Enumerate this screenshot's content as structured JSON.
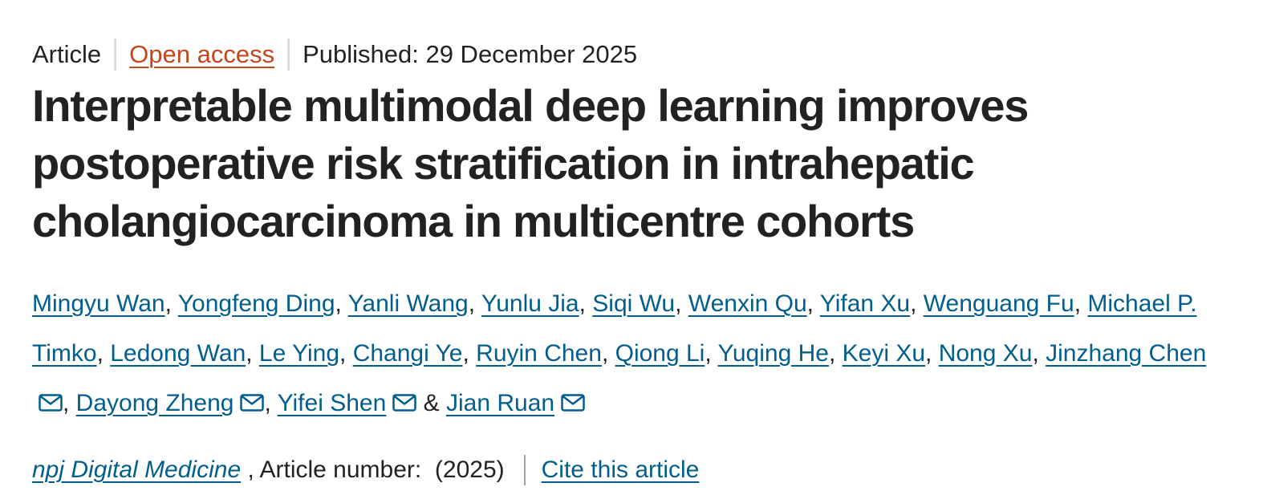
{
  "header": {
    "article_type": "Article",
    "access": "Open access",
    "published": "Published: 29 December 2025"
  },
  "title": "Interpretable multimodal deep learning improves postoperative risk stratification in intrahepatic cholangiocarcinoma in multicentre cohorts",
  "authors": [
    {
      "name": "Mingyu Wan",
      "email": false,
      "after": ", "
    },
    {
      "name": "Yongfeng Ding",
      "email": false,
      "after": ", "
    },
    {
      "name": "Yanli Wang",
      "email": false,
      "after": ", "
    },
    {
      "name": "Yunlu Jia",
      "email": false,
      "after": ", "
    },
    {
      "name": "Siqi Wu",
      "email": false,
      "after": ", "
    },
    {
      "name": "Wenxin Qu",
      "email": false,
      "after": ", "
    },
    {
      "name": "Yifan Xu",
      "email": false,
      "after": ", "
    },
    {
      "name": "Wenguang Fu",
      "email": false,
      "after": ", "
    },
    {
      "name": "Michael P. Timko",
      "email": false,
      "after": ", "
    },
    {
      "name": "Ledong Wan",
      "email": false,
      "after": ", "
    },
    {
      "name": "Le Ying",
      "email": false,
      "after": ", "
    },
    {
      "name": "Changi Ye",
      "email": false,
      "after": ", "
    },
    {
      "name": "Ruyin Chen",
      "email": false,
      "after": ", "
    },
    {
      "name": "Qiong Li",
      "email": false,
      "after": ", "
    },
    {
      "name": "Yuqing He",
      "email": false,
      "after": ", "
    },
    {
      "name": "Keyi Xu",
      "email": false,
      "after": ", "
    },
    {
      "name": "Nong Xu",
      "email": false,
      "after": ", "
    },
    {
      "name": "Jinzhang Chen",
      "email": true,
      "after": ", "
    },
    {
      "name": "Dayong Zheng",
      "email": true,
      "after": ", "
    },
    {
      "name": "Yifei Shen",
      "email": true,
      "after": " & "
    },
    {
      "name": "Jian Ruan",
      "email": true,
      "after": ""
    }
  ],
  "citation": {
    "journal": "npj Digital Medicine",
    "article_number": " , Article number:  (2025)",
    "cite_link": "Cite this article"
  },
  "icons": {
    "email": "mail-icon"
  },
  "colors": {
    "link": "#025e8d",
    "open_access": "#c4461c",
    "text": "#222222"
  }
}
